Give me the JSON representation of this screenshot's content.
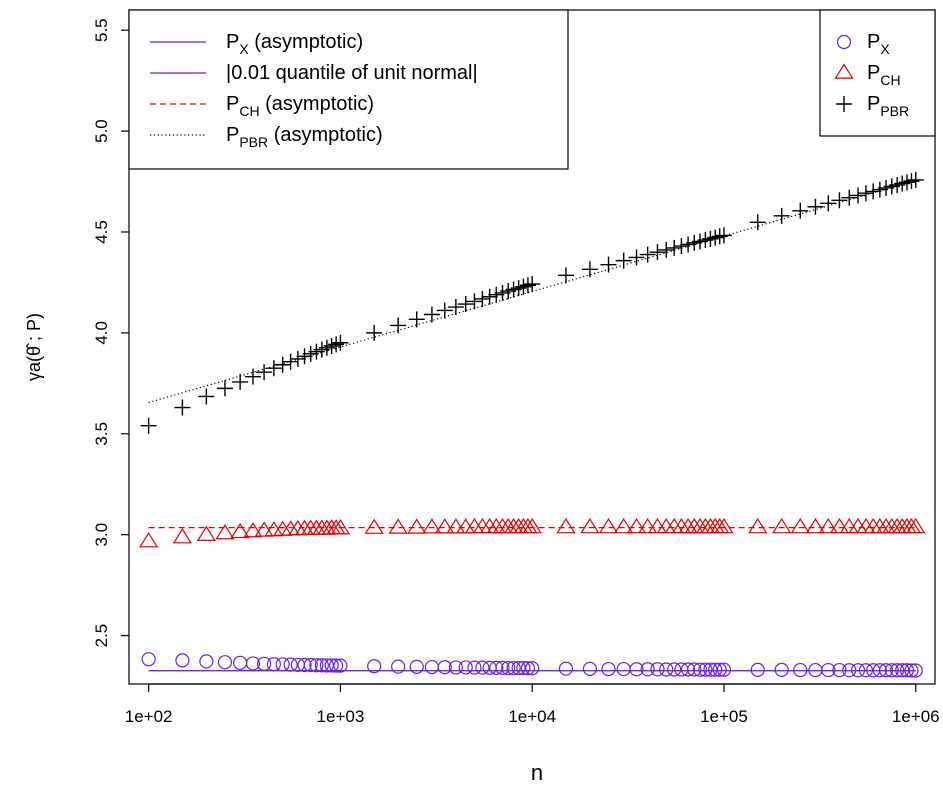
{
  "chart_data": {
    "type": "scatter",
    "xlabel": "n",
    "ylabel": "γa(θ̂ ; P)",
    "x_scale": "log10",
    "xlim": [
      79,
      1260000
    ],
    "ylim": [
      2.26,
      5.6
    ],
    "x_ticks": [
      {
        "value": 100,
        "label": "1e+02"
      },
      {
        "value": 1000,
        "label": "1e+03"
      },
      {
        "value": 10000,
        "label": "1e+04"
      },
      {
        "value": 100000,
        "label": "1e+05"
      },
      {
        "value": 1000000,
        "label": "1e+06"
      }
    ],
    "y_ticks": [
      {
        "value": 2.5,
        "label": "2.5"
      },
      {
        "value": 3.0,
        "label": "3.0"
      },
      {
        "value": 3.5,
        "label": "3.5"
      },
      {
        "value": 4.0,
        "label": "4.0"
      },
      {
        "value": 4.5,
        "label": "4.5"
      },
      {
        "value": 5.0,
        "label": "5.0"
      },
      {
        "value": 5.5,
        "label": "5.5"
      }
    ],
    "grid": false,
    "x": [
      100,
      150,
      200,
      250,
      300,
      350,
      400,
      450,
      500,
      550,
      600,
      650,
      700,
      750,
      800,
      850,
      900,
      950,
      1000,
      1500,
      2000,
      2500,
      3000,
      3500,
      4000,
      4500,
      5000,
      5500,
      6000,
      6500,
      7000,
      7500,
      8000,
      8500,
      9000,
      9500,
      10000,
      15000,
      20000,
      25000,
      30000,
      35000,
      40000,
      45000,
      50000,
      55000,
      60000,
      65000,
      70000,
      75000,
      80000,
      85000,
      90000,
      95000,
      100000,
      150000,
      200000,
      250000,
      300000,
      350000,
      400000,
      450000,
      500000,
      550000,
      600000,
      650000,
      700000,
      750000,
      800000,
      850000,
      900000,
      950000,
      1000000
    ],
    "series": [
      {
        "name": "P_X",
        "marker": "circle",
        "color": "#6a1fe0",
        "values": [
          2.383,
          2.377,
          2.372,
          2.368,
          2.365,
          2.362,
          2.36,
          2.358,
          2.357,
          2.356,
          2.355,
          2.354,
          2.354,
          2.353,
          2.353,
          2.352,
          2.352,
          2.351,
          2.351,
          2.348,
          2.346,
          2.345,
          2.344,
          2.343,
          2.342,
          2.342,
          2.341,
          2.341,
          2.34,
          2.34,
          2.34,
          2.339,
          2.339,
          2.339,
          2.339,
          2.338,
          2.338,
          2.336,
          2.335,
          2.334,
          2.334,
          2.333,
          2.333,
          2.333,
          2.332,
          2.332,
          2.332,
          2.332,
          2.332,
          2.331,
          2.331,
          2.331,
          2.331,
          2.331,
          2.331,
          2.33,
          2.33,
          2.329,
          2.329,
          2.329,
          2.329,
          2.328,
          2.328,
          2.328,
          2.328,
          2.328,
          2.328,
          2.328,
          2.328,
          2.328,
          2.328,
          2.327,
          2.327
        ]
      },
      {
        "name": "P_CH",
        "marker": "triangle",
        "color": "#e00000",
        "values": [
          2.965,
          2.985,
          2.997,
          3.005,
          3.011,
          3.015,
          3.018,
          3.02,
          3.022,
          3.024,
          3.025,
          3.026,
          3.027,
          3.027,
          3.028,
          3.028,
          3.029,
          3.029,
          3.03,
          3.032,
          3.033,
          3.033,
          3.034,
          3.034,
          3.034,
          3.034,
          3.035,
          3.035,
          3.035,
          3.035,
          3.035,
          3.035,
          3.035,
          3.035,
          3.035,
          3.035,
          3.035,
          3.035,
          3.035,
          3.035,
          3.035,
          3.035,
          3.035,
          3.035,
          3.035,
          3.035,
          3.035,
          3.035,
          3.035,
          3.035,
          3.035,
          3.035,
          3.035,
          3.035,
          3.035,
          3.035,
          3.035,
          3.035,
          3.035,
          3.035,
          3.035,
          3.035,
          3.035,
          3.035,
          3.035,
          3.035,
          3.035,
          3.035,
          3.035,
          3.035,
          3.035,
          3.035,
          3.035
        ]
      },
      {
        "name": "P_PBR",
        "marker": "plus",
        "color": "#000000",
        "values": [
          3.54,
          3.63,
          3.685,
          3.725,
          3.757,
          3.783,
          3.805,
          3.825,
          3.842,
          3.857,
          3.871,
          3.884,
          3.896,
          3.907,
          3.917,
          3.926,
          3.935,
          3.943,
          3.951,
          4.0,
          4.037,
          4.067,
          4.091,
          4.111,
          4.128,
          4.143,
          4.156,
          4.168,
          4.179,
          4.189,
          4.198,
          4.207,
          4.215,
          4.222,
          4.229,
          4.236,
          4.242,
          4.285,
          4.315,
          4.338,
          4.358,
          4.374,
          4.388,
          4.4,
          4.411,
          4.421,
          4.43,
          4.438,
          4.446,
          4.453,
          4.46,
          4.466,
          4.472,
          4.478,
          4.483,
          4.548,
          4.58,
          4.605,
          4.625,
          4.642,
          4.657,
          4.67,
          4.681,
          4.692,
          4.701,
          4.71,
          4.718,
          4.726,
          4.733,
          4.74,
          4.746,
          4.752,
          4.758
        ]
      }
    ],
    "reference_lines": [
      {
        "name": "P_X (asymptotic)",
        "style": "solid",
        "color": "#6a1fe0",
        "x": [
          100,
          1000000
        ],
        "y": [
          2.326,
          2.326
        ]
      },
      {
        "name": "|0.01 quantile of unit normal|",
        "style": "solid",
        "color": "#6a1fe0",
        "x": [
          100,
          1000000
        ],
        "y": [
          2.326,
          2.326
        ]
      },
      {
        "name": "P_CH (asymptotic)",
        "style": "dashed",
        "color": "#e00000",
        "x": [
          100,
          1000000
        ],
        "y": [
          3.035,
          3.035
        ]
      },
      {
        "name": "P_PBR (asymptotic)",
        "style": "dotted",
        "color": "#000000",
        "x": [
          100,
          1000000
        ],
        "y": [
          3.655,
          4.755
        ]
      }
    ],
    "legend_lines": {
      "placement": "top-left",
      "entries": [
        {
          "main": "P",
          "sub": "X",
          "rest": " (asymptotic)",
          "style": "solid",
          "color": "#6a1fe0"
        },
        {
          "main": "|0.01 quantile of unit normal|",
          "sub": "",
          "rest": "",
          "style": "solid",
          "color": "#6a1fe0"
        },
        {
          "main": "P",
          "sub": "CH",
          "rest": " (asymptotic)",
          "style": "dashed",
          "color": "#e00000"
        },
        {
          "main": "P",
          "sub": "PBR",
          "rest": " (asymptotic)",
          "style": "dotted",
          "color": "#000000"
        }
      ]
    },
    "legend_markers": {
      "placement": "top-right",
      "entries": [
        {
          "main": "P",
          "sub": "X",
          "marker": "circle",
          "color": "#6a1fe0"
        },
        {
          "main": "P",
          "sub": "CH",
          "marker": "triangle",
          "color": "#e00000"
        },
        {
          "main": "P",
          "sub": "PBR",
          "marker": "plus",
          "color": "#000000"
        }
      ]
    }
  }
}
